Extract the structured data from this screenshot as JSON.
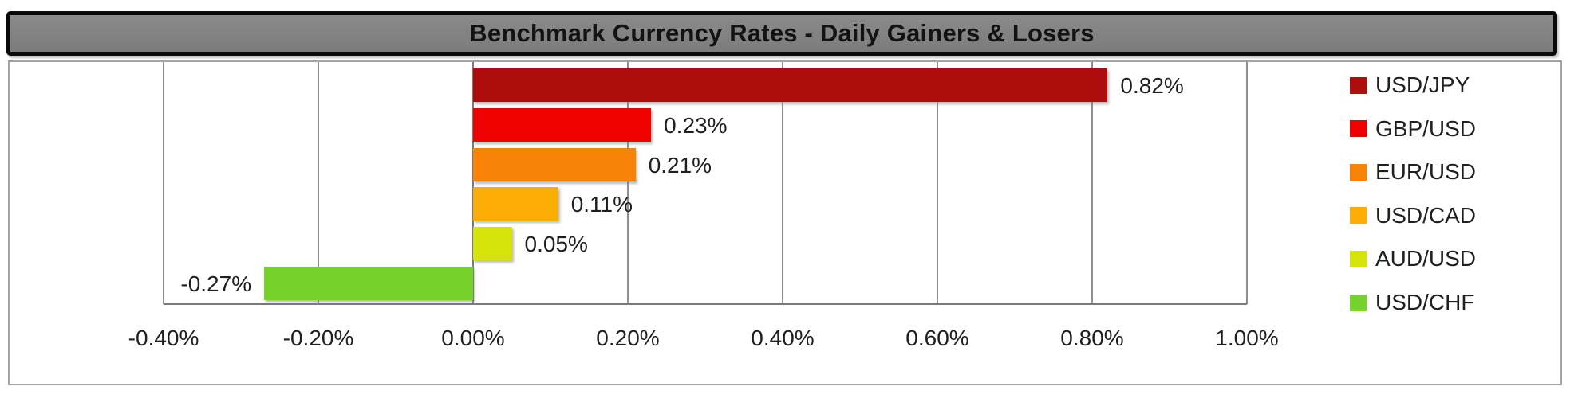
{
  "window": {
    "title": "Benchmark Currency Rates - Daily Gainers & Losers"
  },
  "chart_data": {
    "type": "bar",
    "orientation": "horizontal",
    "title": "Benchmark Currency Rates - Daily Gainers & Losers",
    "categories": [
      "USD/JPY",
      "GBP/USD",
      "EUR/USD",
      "USD/CAD",
      "AUD/USD",
      "USD/CHF"
    ],
    "values": [
      0.82,
      0.23,
      0.21,
      0.11,
      0.05,
      -0.27
    ],
    "value_labels": [
      "0.82%",
      "0.23%",
      "0.21%",
      "0.11%",
      "0.05%",
      "-0.27%"
    ],
    "bar_colors": [
      "#AE0D0E",
      "#EE0101",
      "#F98307",
      "#FBAD05",
      "#D5E30B",
      "#75D22A"
    ],
    "x_ticks": [
      -0.4,
      -0.2,
      0,
      0.2,
      0.4,
      0.6,
      0.8,
      1
    ],
    "x_tick_labels": [
      "-0.40%",
      "-0.20%",
      "0.00%",
      "0.20%",
      "0.40%",
      "0.60%",
      "0.80%",
      "1.00%"
    ],
    "xlim": [
      -0.4,
      1.0
    ],
    "legend": [
      "USD/JPY",
      "GBP/USD",
      "EUR/USD",
      "USD/CAD",
      "AUD/USD",
      "USD/CHF"
    ],
    "legend_position": "right",
    "grid": "vertical-only",
    "xlabel": "",
    "ylabel": ""
  },
  "colors": {
    "title_bar_bg": "#7F7F7F",
    "title_bar_border": "#0A0A0A",
    "chart_border": "#A3A3A3",
    "gridline": "#8F8F8F",
    "zero_line": "#7A7A7A",
    "text": "#1F1F1F"
  }
}
